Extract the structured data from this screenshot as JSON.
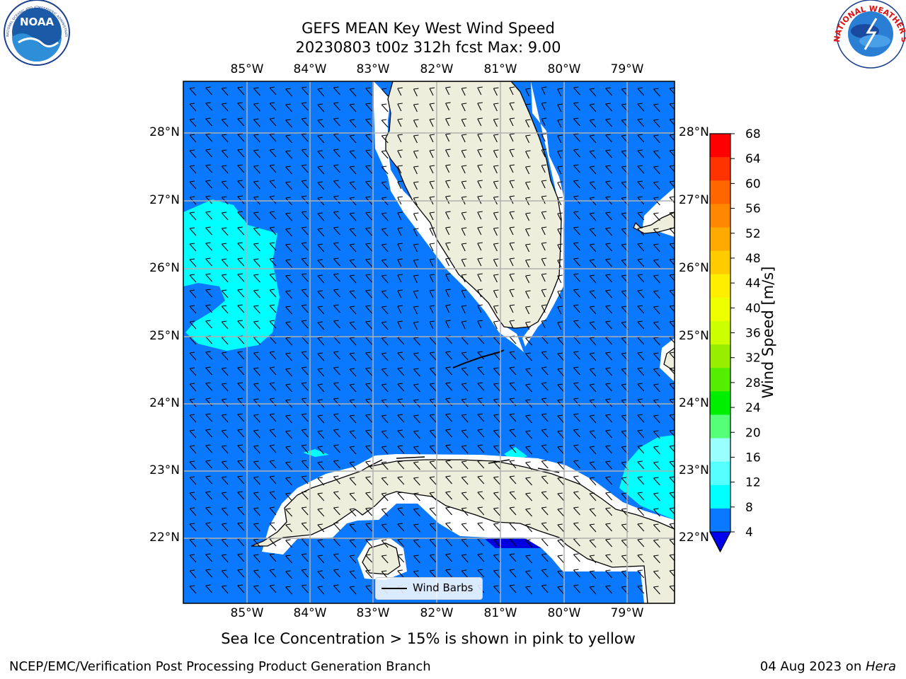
{
  "header": {
    "title_line1": "GEFS MEAN Key West Wind Speed",
    "title_line2": "20230803 t00z 312h fcst   Max: 9.00"
  },
  "logos": {
    "noaa_text": "NOAA",
    "noaa_ring_text": "NATIONAL OCEANIC AND ATMOSPHERIC ADMINISTRATION · U.S. DEPARTMENT OF COMMERCE",
    "nws_ring_text": "NATIONAL WEATHER SERVICE"
  },
  "map": {
    "lon_ticks": [
      "85°W",
      "84°W",
      "83°W",
      "82°W",
      "81°W",
      "80°W",
      "79°W"
    ],
    "lat_ticks": [
      "28°N",
      "27°N",
      "26°N",
      "25°N",
      "24°N",
      "23°N",
      "22°N"
    ],
    "legend_label": "Wind Barbs",
    "colors": {
      "ocean": "#0a78ff",
      "ocean_high": "#00ffff",
      "ocean_low": "#0000e0",
      "land": "#eeeedd",
      "grid": "#b0b0b0"
    }
  },
  "colorbar": {
    "label": "Wind Speed [m/s]",
    "ticks": [
      "68",
      "64",
      "60",
      "56",
      "52",
      "48",
      "44",
      "40",
      "36",
      "32",
      "28",
      "24",
      "20",
      "16",
      "12",
      "8",
      "4"
    ],
    "colors": [
      "#ff0000",
      "#ff3300",
      "#ff6600",
      "#ff8800",
      "#ffaa00",
      "#ffcc00",
      "#ffee00",
      "#eeff00",
      "#ccff00",
      "#99ee00",
      "#55ee00",
      "#00ee00",
      "#55ff77",
      "#99ffff",
      "#55ffff",
      "#00ffff",
      "#0a78ff"
    ],
    "extend_color": "#0000ee"
  },
  "notes": {
    "sea_ice": "Sea Ice Concentration > 15% is shown in pink to yellow",
    "branch": "NCEP/EMC/Verification Post Processing Product Generation Branch",
    "date_prefix": "04 Aug 2023 on ",
    "date_host": "Hera"
  }
}
